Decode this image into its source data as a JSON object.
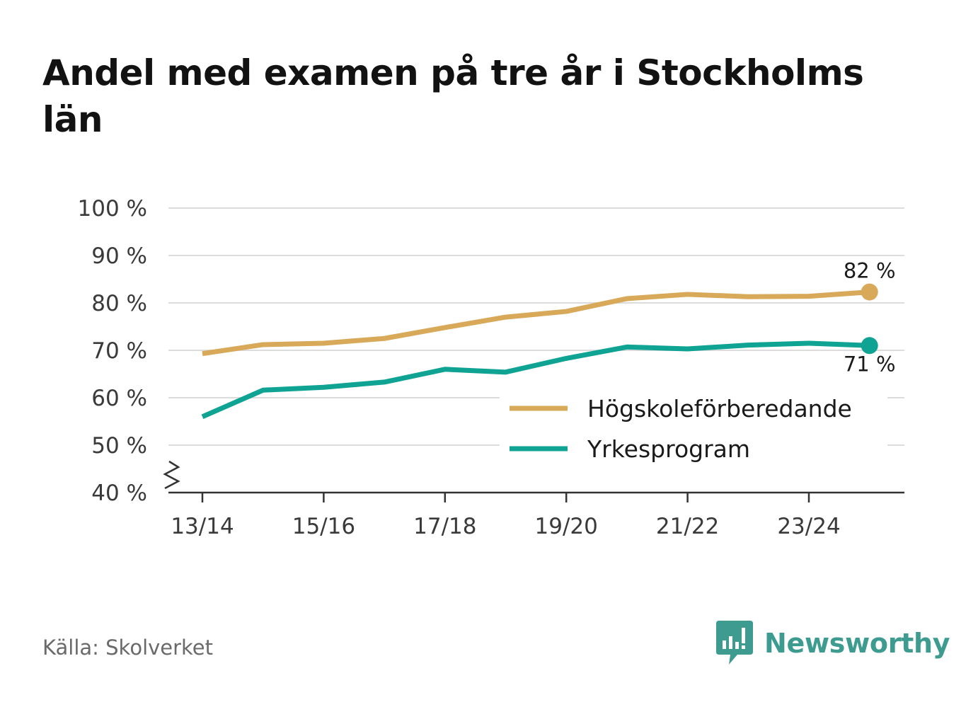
{
  "title": "Andel med examen på tre år i Stockholms län",
  "source": "Källa: Skolverket",
  "brand": {
    "name": "Newsworthy",
    "icon": "bar-chart-speech-bubble-icon",
    "color": "#3d9c8f"
  },
  "chart_data": {
    "type": "line",
    "title": "Andel med examen på tre år i Stockholms län",
    "xlabel": "",
    "ylabel": "",
    "x": [
      "13/14",
      "14/15",
      "15/16",
      "16/17",
      "17/18",
      "18/19",
      "19/20",
      "20/21",
      "21/22",
      "22/23",
      "23/24",
      "24/25"
    ],
    "x_tick_labels": [
      "13/14",
      "15/16",
      "17/18",
      "19/20",
      "21/22",
      "23/24"
    ],
    "ylim": [
      40,
      100
    ],
    "y_ticks": [
      40,
      50,
      60,
      70,
      80,
      90,
      100
    ],
    "y_tick_labels": [
      "40 %",
      "50 %",
      "60 %",
      "70 %",
      "80 %",
      "90 %",
      "100 %"
    ],
    "axis_break": true,
    "grid": true,
    "legend_position": "bottom-right",
    "series": [
      {
        "name": "Högskoleförberedande",
        "color": "#d9a95a",
        "values": [
          69.3,
          71.2,
          71.5,
          72.5,
          74.8,
          77.0,
          78.2,
          80.9,
          81.8,
          81.3,
          81.4,
          82.3
        ],
        "end_label": "82 %"
      },
      {
        "name": "Yrkesprogram",
        "color": "#0fa394",
        "values": [
          56.0,
          61.6,
          62.2,
          63.3,
          66.0,
          65.4,
          68.3,
          70.7,
          70.3,
          71.1,
          71.5,
          71.0
        ],
        "end_label": "71 %"
      }
    ]
  }
}
